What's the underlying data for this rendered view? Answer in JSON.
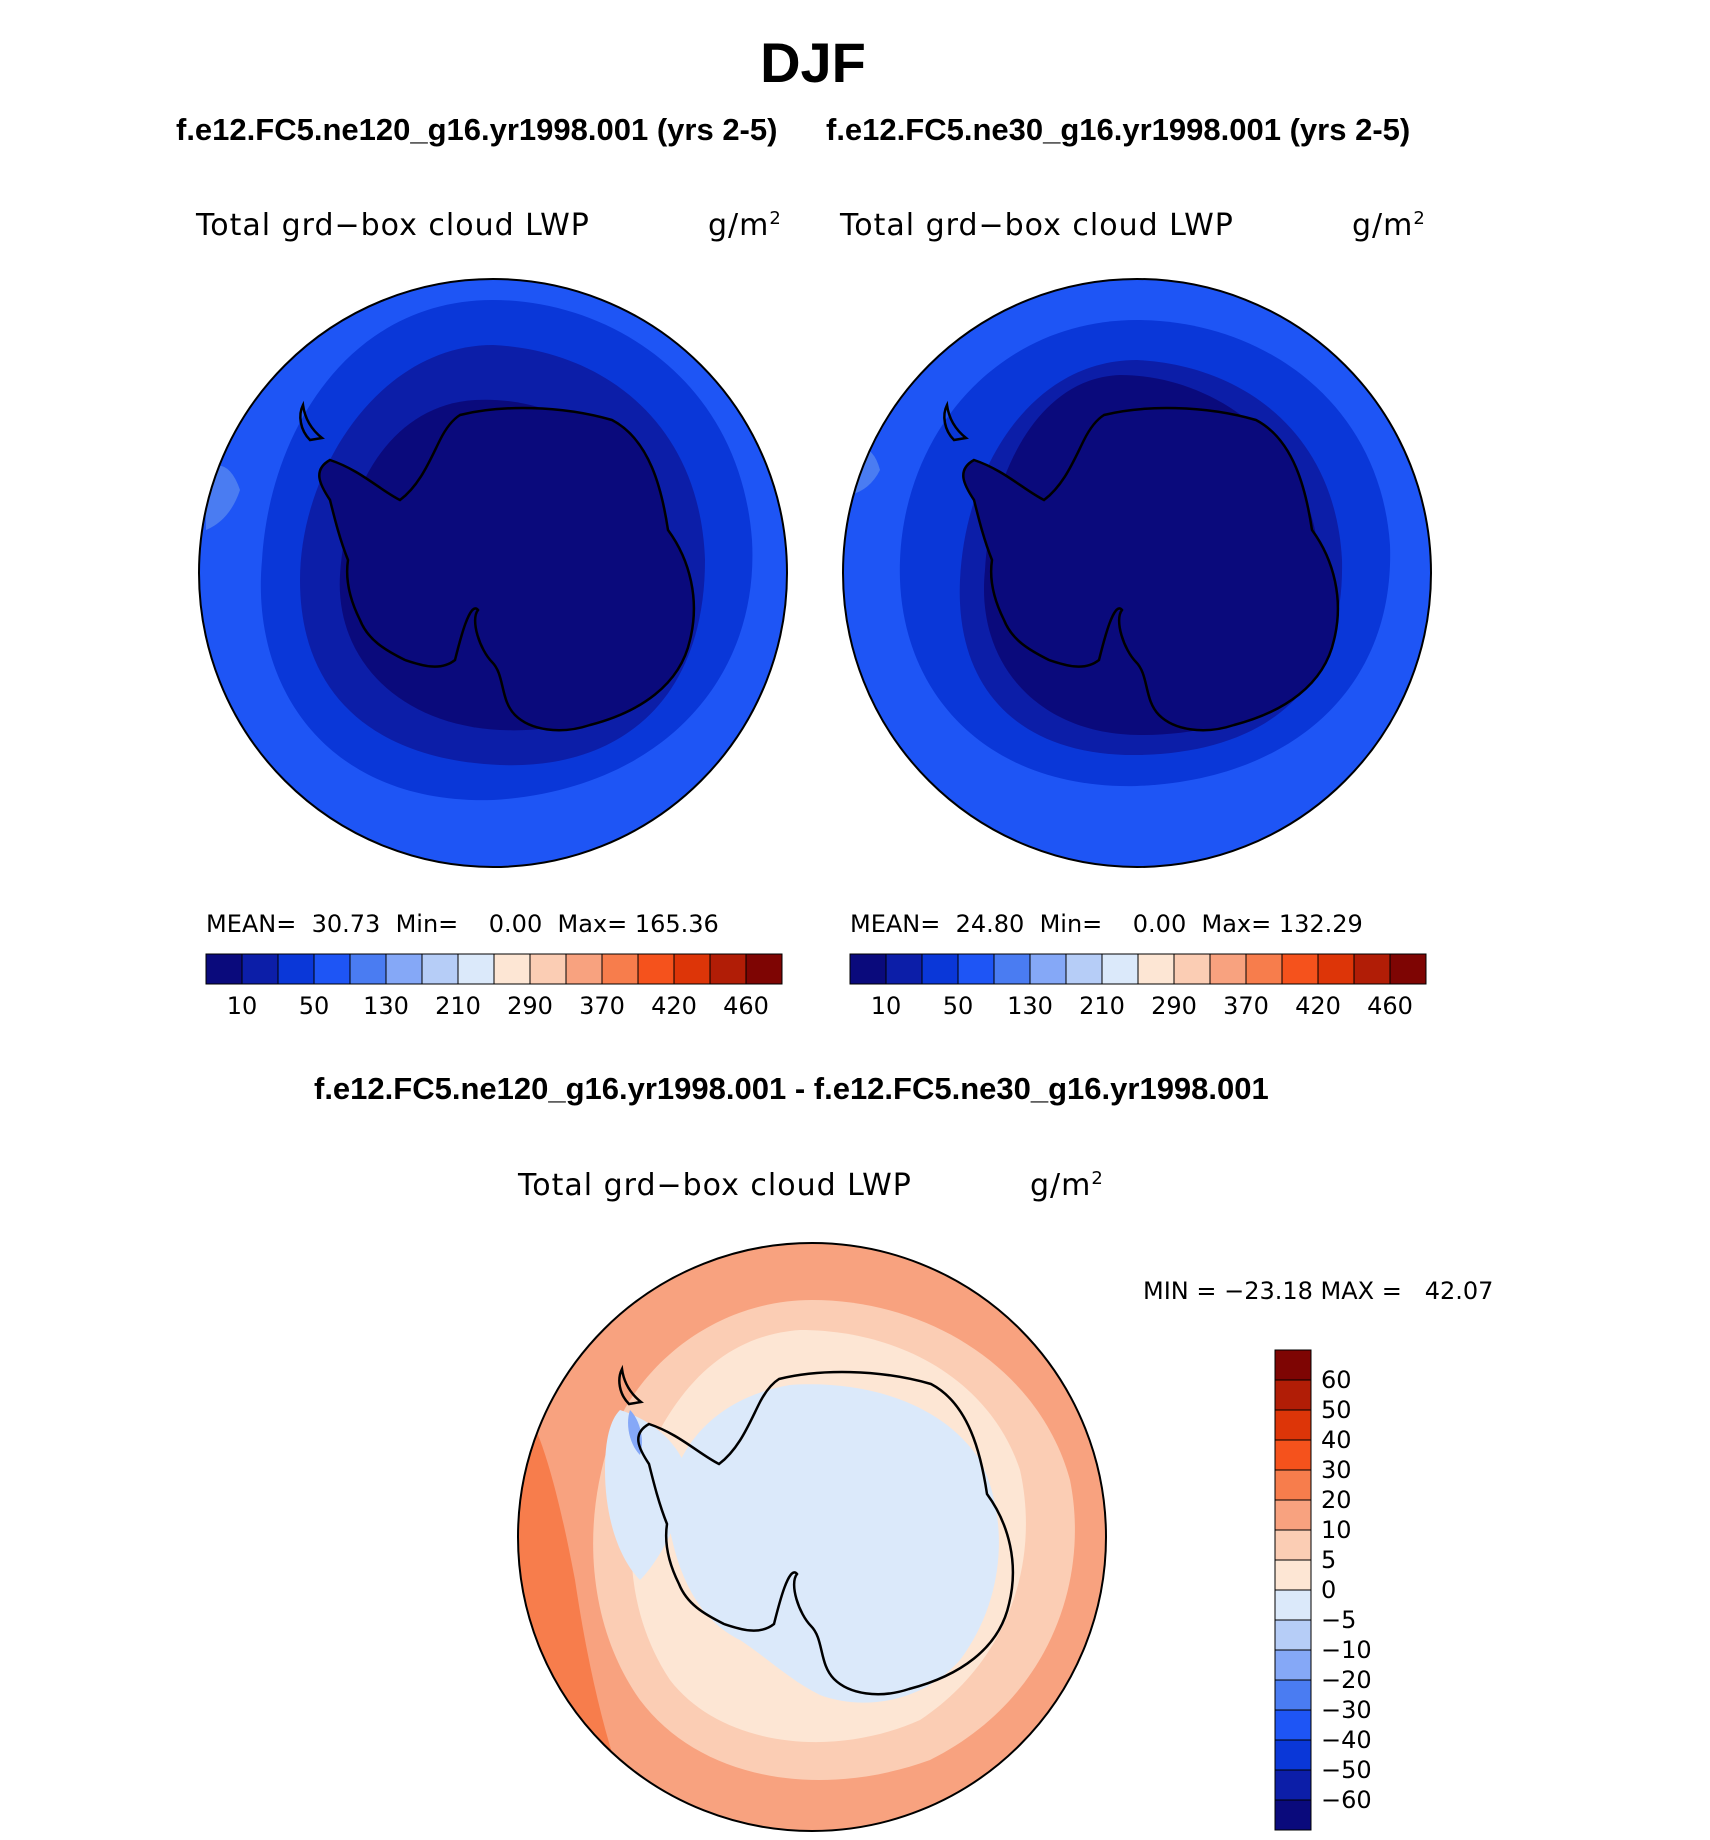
{
  "figure": {
    "title": "DJF",
    "panel_left_case": "f.e12.FC5.ne120_g16.yr1998.001 (yrs 2-5)",
    "panel_right_case": "f.e12.FC5.ne30_g16.yr1998.001 (yrs 2-5)",
    "diff_case": "f.e12.FC5.ne120_g16.yr1998.001 - f.e12.FC5.ne30_g16.yr1998.001"
  },
  "panels": [
    {
      "variable": "Total grd−box cloud LWP",
      "units_base": "g/m",
      "units_exp": "2",
      "stats_text": "MEAN=  30.73  Min=    0.00  Max= 165.36"
    },
    {
      "variable": "Total grd−box cloud LWP",
      "units_base": "g/m",
      "units_exp": "2",
      "stats_text": "MEAN=  24.80  Min=    0.00  Max= 132.29"
    },
    {
      "variable": "Total grd−box cloud LWP",
      "units_base": "g/m",
      "units_exp": "2",
      "stats_text": "MIN = −23.18 MAX =   42.07"
    }
  ],
  "colorbars": {
    "abs": {
      "colors": [
        "#0a0a7c",
        "#0c1ea8",
        "#0a37d8",
        "#1e55f5",
        "#4a7cf2",
        "#85a8f7",
        "#b6cdf7",
        "#dbe9fa",
        "#fde6d4",
        "#fbcdb4",
        "#f8a27f",
        "#f77d4c",
        "#f5521c",
        "#dd3508",
        "#b11d06",
        "#7e0503"
      ],
      "tick_labels": [
        "10",
        "50",
        "130",
        "210",
        "290",
        "370",
        "420",
        "460"
      ]
    },
    "diff": {
      "colors": [
        "#0a0a7c",
        "#0c1ea8",
        "#0a37d8",
        "#1e55f5",
        "#4a7cf2",
        "#85a8f7",
        "#b6cdf7",
        "#dbe9fa",
        "#fde6d4",
        "#fbcdb4",
        "#f8a27f",
        "#f77d4c",
        "#f5521c",
        "#dd3508",
        "#b11d06",
        "#7e0503"
      ],
      "tick_labels": [
        "−60",
        "−50",
        "−40",
        "−30",
        "−20",
        "−10",
        "−5",
        "0",
        "5",
        "10",
        "20",
        "30",
        "40",
        "50",
        "60"
      ]
    }
  }
}
